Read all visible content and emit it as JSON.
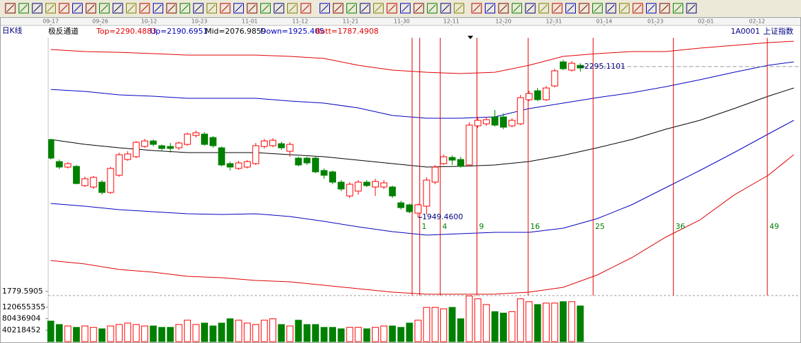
{
  "chart_data": {
    "type": "candlestick",
    "period": "日K线",
    "indicator": "极反通道",
    "code": "1A0001",
    "name": "上证指数",
    "xlim": [
      -0.3,
      87.6
    ],
    "xticks": [
      {
        "value": 0,
        "label": "09-17"
      },
      {
        "value": 5.8,
        "label": "09-26"
      },
      {
        "value": 11.5,
        "label": "10-12"
      },
      {
        "value": 17.4,
        "label": "10-23"
      },
      {
        "value": 23.3,
        "label": "11-01"
      },
      {
        "value": 29.2,
        "label": "11-12"
      },
      {
        "value": 35.1,
        "label": "11-21"
      },
      {
        "value": 41.1,
        "label": "11-30"
      },
      {
        "value": 46.9,
        "label": "12-11"
      },
      {
        "value": 53.0,
        "label": "12-20"
      },
      {
        "value": 58.9,
        "label": "12-31"
      },
      {
        "value": 64.8,
        "label": "01-14"
      },
      {
        "value": 70.8,
        "label": "01-23"
      },
      {
        "value": 76.7,
        "label": "02-01"
      },
      {
        "value": 82.7,
        "label": "02-12"
      }
    ],
    "ylim": [
      1779.5905,
      2361.2
    ],
    "yticks": [
      1779.5905
    ],
    "vlim": [
      0,
      161300000
    ],
    "vticks": [
      120655355,
      80436904,
      40218452
    ],
    "up_color": "#ff0000",
    "down_color": "#008000",
    "x": [
      0,
      1,
      2,
      3,
      4,
      5,
      6,
      7,
      8,
      9,
      10,
      11,
      12,
      13,
      14,
      15,
      16,
      17,
      18,
      19,
      20,
      21,
      22,
      23,
      24,
      25,
      26,
      27,
      28,
      29,
      30,
      31,
      32,
      33,
      34,
      35,
      36,
      37,
      38,
      39,
      40,
      41,
      42,
      43,
      44,
      45,
      46,
      47,
      48,
      49,
      50,
      51,
      52,
      53,
      54,
      55,
      56,
      57,
      58,
      59,
      60,
      61,
      62
    ],
    "open": [
      2127.9,
      2077.4,
      2064.8,
      2066.4,
      2022.3,
      2019.1,
      2030.2,
      2006.5,
      2045.9,
      2082.2,
      2088.5,
      2112.1,
      2124.7,
      2113.7,
      2112.1,
      2109.0,
      2116.8,
      2137.3,
      2140.5,
      2132.6,
      2109.0,
      2072.7,
      2061.7,
      2064.8,
      2072.7,
      2112.1,
      2113.7,
      2118.4,
      2101.1,
      2085.3,
      2085.3,
      2085.3,
      2057.0,
      2053.8,
      2030.2,
      1998.6,
      2009.7,
      2030.2,
      2019.1,
      2019.1,
      2019.1,
      1982.9,
      1978.2,
      1959.2,
      1975.0,
      2030.2,
      2072.7,
      2086.9,
      2082.2,
      2069.6,
      2159.4,
      2164.1,
      2179.9,
      2179.9,
      2159.4,
      2164.1,
      2219.3,
      2239.8,
      2219.3,
      2250.8,
      2306.0,
      2287.0,
      2298.1
    ],
    "high": [
      2129.4,
      2082.2,
      2075.9,
      2069.6,
      2042.8,
      2044.3,
      2034.9,
      2064.8,
      2097.9,
      2101.1,
      2124.7,
      2129.4,
      2127.9,
      2116.8,
      2120.0,
      2123.1,
      2143.6,
      2148.4,
      2145.2,
      2135.8,
      2112.1,
      2077.4,
      2079.0,
      2080.6,
      2120.0,
      2129.4,
      2131.0,
      2123.1,
      2121.6,
      2088.5,
      2088.5,
      2088.5,
      2061.7,
      2057.0,
      2034.9,
      2030.2,
      2034.9,
      2034.9,
      2038.0,
      2034.9,
      2022.3,
      1987.6,
      1981.3,
      1981.3,
      2041.2,
      2069.6,
      2093.2,
      2091.6,
      2088.5,
      2167.3,
      2179.9,
      2179.9,
      2195.6,
      2187.8,
      2176.7,
      2230.3,
      2239.8,
      2246.1,
      2250.8,
      2290.2,
      2310.7,
      2307.6,
      2302.8
    ],
    "low": [
      2082.2,
      2060.1,
      2061.7,
      2025.4,
      2019.1,
      2014.4,
      2001.8,
      2003.4,
      2042.8,
      2079.0,
      2085.3,
      2109.0,
      2112.1,
      2101.1,
      2097.9,
      2104.2,
      2113.7,
      2132.6,
      2113.7,
      2109.0,
      2066.4,
      2057.0,
      2058.5,
      2061.7,
      2069.6,
      2107.4,
      2110.5,
      2104.2,
      2088.5,
      2066.4,
      2069.6,
      2050.6,
      2038.0,
      2025.4,
      2009.7,
      1993.9,
      2001.8,
      2019.1,
      1998.6,
      2014.4,
      1993.9,
      1967.1,
      1959.2,
      1949.46,
      1956.1,
      2025.4,
      2069.6,
      2069.6,
      2063.3,
      2066.4,
      2154.7,
      2159.4,
      2157.8,
      2151.5,
      2156.2,
      2161.0,
      2216.1,
      2216.1,
      2216.1,
      2247.6,
      2287.0,
      2283.9,
      2283.9
    ],
    "close": [
      2085.3,
      2064.8,
      2072.7,
      2027.0,
      2038.0,
      2041.2,
      2006.5,
      2061.7,
      2093.2,
      2094.8,
      2121.6,
      2124.7,
      2116.8,
      2107.4,
      2107.4,
      2120.0,
      2140.5,
      2143.6,
      2116.8,
      2113.7,
      2069.6,
      2064.8,
      2074.3,
      2077.4,
      2113.7,
      2124.7,
      2126.3,
      2109.0,
      2116.8,
      2069.6,
      2074.3,
      2053.8,
      2045.9,
      2030.2,
      2014.4,
      2025.4,
      2030.2,
      2022.3,
      2031.7,
      2028.6,
      1998.6,
      1971.8,
      1962.4,
      1978.2,
      2034.9,
      2064.8,
      2088.5,
      2080.6,
      2066.4,
      2161.0,
      2172.0,
      2173.6,
      2161.0,
      2156.2,
      2172.0,
      2224.0,
      2233.5,
      2219.3,
      2246.1,
      2285.5,
      2290.2,
      2302.8,
      2291.9
    ],
    "volume": [
      72000000,
      60000000,
      55000000,
      50000000,
      55000000,
      50000000,
      45000000,
      55000000,
      60000000,
      65000000,
      60000000,
      55000000,
      55000000,
      50000000,
      50000000,
      60000000,
      75000000,
      60000000,
      65000000,
      55000000,
      65000000,
      80000000,
      75000000,
      65000000,
      60000000,
      75000000,
      80000000,
      60000000,
      55000000,
      75000000,
      60000000,
      60000000,
      50000000,
      50000000,
      45000000,
      50000000,
      50000000,
      45000000,
      50000000,
      55000000,
      55000000,
      50000000,
      65000000,
      75000000,
      120000000,
      120000000,
      115000000,
      120000000,
      80000000,
      160000000,
      150000000,
      130000000,
      105000000,
      100000000,
      105000000,
      150000000,
      140000000,
      130000000,
      135000000,
      135000000,
      140000000,
      140000000,
      125000000
    ],
    "bands": [
      {
        "label": "Top=2290.4883",
        "color": "#e00000",
        "x": [
          0,
          4,
          8,
          12,
          16,
          20,
          24,
          28,
          32,
          36,
          40,
          44,
          48,
          52,
          56,
          60,
          64,
          68,
          72,
          76,
          80,
          84,
          87
        ],
        "values": [
          2334.4,
          2329.6,
          2328.0,
          2324.9,
          2321.7,
          2321.7,
          2321.7,
          2318.6,
          2313.9,
          2298.1,
          2287.1,
          2282.3,
          2279.2,
          2282.3,
          2298.1,
          2318.6,
          2324.9,
          2329.6,
          2329.6,
          2337.5,
          2343.8,
          2350.1,
          2353.3
        ]
      },
      {
        "label": "Up=2190.6951",
        "color": "#0000c0",
        "x": [
          0,
          4,
          8,
          12,
          16,
          20,
          24,
          28,
          32,
          36,
          40,
          44,
          48,
          52,
          56,
          60,
          64,
          68,
          72,
          76,
          80,
          84,
          87
        ],
        "values": [
          2242.9,
          2238.2,
          2230.3,
          2227.2,
          2222.5,
          2222.5,
          2222.5,
          2216.2,
          2211.4,
          2200.4,
          2183.1,
          2176.8,
          2176.8,
          2179.9,
          2198.8,
          2211.4,
          2224.0,
          2235.1,
          2249.2,
          2265.0,
          2282.3,
          2298.1,
          2306.0
        ]
      },
      {
        "label": "Mid=2076.9859",
        "color": "#000000",
        "x": [
          0,
          4,
          8,
          12,
          16,
          20,
          24,
          28,
          32,
          36,
          40,
          44,
          48,
          52,
          56,
          60,
          64,
          68,
          72,
          76,
          80,
          84,
          87
        ],
        "values": [
          2127.9,
          2116.9,
          2109.0,
          2102.7,
          2098.0,
          2098.0,
          2098.0,
          2093.2,
          2088.5,
          2080.6,
          2072.7,
          2064.9,
          2066.4,
          2069.6,
          2077.5,
          2091.6,
          2109.0,
          2127.9,
          2151.5,
          2172.0,
          2198.8,
          2227.2,
          2246.1
        ]
      },
      {
        "label": "Down=1925.405",
        "color": "#0000c0",
        "x": [
          0,
          4,
          8,
          12,
          16,
          20,
          24,
          28,
          32,
          36,
          40,
          44,
          48,
          52,
          56,
          60,
          64,
          68,
          72,
          76,
          80,
          84,
          87
        ],
        "values": [
          1981.3,
          1975.0,
          1967.1,
          1962.4,
          1957.7,
          1956.1,
          1957.7,
          1951.4,
          1940.4,
          1927.7,
          1916.7,
          1908.8,
          1912.0,
          1915.1,
          1915.1,
          1924.6,
          1946.7,
          1978.2,
          2017.6,
          2057.0,
          2098.0,
          2140.5,
          2172.0
        ]
      },
      {
        "label": "Bott=1787.4908",
        "color": "#e00000",
        "x": [
          0,
          4,
          8,
          12,
          16,
          20,
          24,
          28,
          32,
          36,
          40,
          44,
          48,
          52,
          56,
          60,
          64,
          68,
          72,
          76,
          80,
          84,
          87
        ],
        "values": [
          1850.5,
          1842.6,
          1830.0,
          1823.7,
          1814.3,
          1811.1,
          1804.8,
          1801.7,
          1793.8,
          1785.9,
          1778.0,
          1773.3,
          1773.3,
          1773.3,
          1778.0,
          1789.1,
          1817.4,
          1856.8,
          1904.1,
          1943.5,
          2000.8,
          2045.9,
          2093.2
        ]
      }
    ],
    "fib_lines": {
      "color": "#e00000",
      "x": [
        42.3,
        43.2,
        45.6,
        49.9,
        55.9,
        63.5,
        72.9,
        83.9
      ],
      "labels": [
        null,
        1,
        4,
        9,
        16,
        25,
        36,
        49
      ]
    },
    "annotations": [
      {
        "x": 62,
        "value": 2295.1101
      },
      {
        "x": 43,
        "value": 1949.46,
        "label": "1949.4600"
      }
    ]
  }
}
